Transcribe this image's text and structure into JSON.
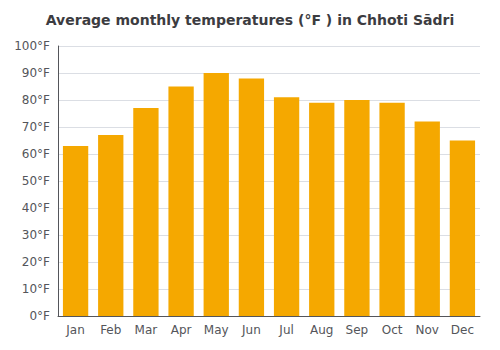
{
  "chart_data": {
    "type": "bar",
    "title": "Average monthly temperatures (°F ) in Chhoti Sādri",
    "categories": [
      "Jan",
      "Feb",
      "Mar",
      "Apr",
      "May",
      "Jun",
      "Jul",
      "Aug",
      "Sep",
      "Oct",
      "Nov",
      "Dec"
    ],
    "values": [
      63,
      67,
      77,
      85,
      90,
      88,
      81,
      79,
      80,
      79,
      72,
      65
    ],
    "color": "#F5A800",
    "ylim": [
      0,
      100
    ],
    "yticks": [
      {
        "value": 0,
        "label": "0°F"
      },
      {
        "value": 10,
        "label": "10°F"
      },
      {
        "value": 20,
        "label": "20°F"
      },
      {
        "value": 30,
        "label": "30°F"
      },
      {
        "value": 40,
        "label": "40°F"
      },
      {
        "value": 50,
        "label": "50°F"
      },
      {
        "value": 60,
        "label": "60°F"
      },
      {
        "value": 70,
        "label": "70°F"
      },
      {
        "value": 80,
        "label": "80°F"
      },
      {
        "value": 90,
        "label": "90°F"
      },
      {
        "value": 100,
        "label": "100°F"
      }
    ],
    "grid": true
  }
}
